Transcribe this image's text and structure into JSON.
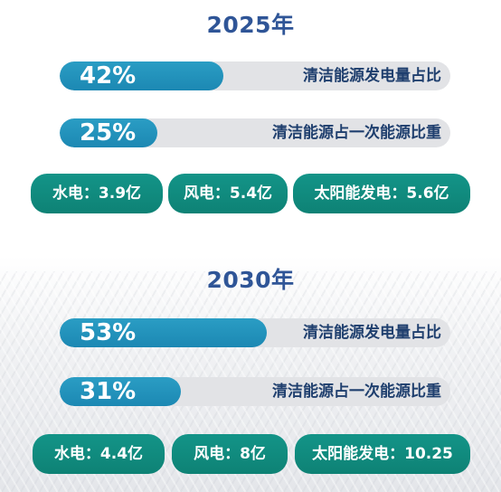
{
  "sections": [
    {
      "year": "2025年",
      "bars": [
        {
          "percent_text": "42%",
          "value": 42,
          "label": "清洁能源发电量占比"
        },
        {
          "percent_text": "25%",
          "value": 25,
          "label": "清洁能源占一次能源比重"
        }
      ],
      "pills": [
        {
          "text": "水电：3.9亿"
        },
        {
          "text": "风电：5.4亿"
        },
        {
          "text": "太阳能发电：5.6亿"
        }
      ]
    },
    {
      "year": "2030年",
      "bars": [
        {
          "percent_text": "53%",
          "value": 53,
          "label": "清洁能源发电量占比"
        },
        {
          "percent_text": "31%",
          "value": 31,
          "label": "清洁能源占一次能源比重"
        }
      ],
      "pills": [
        {
          "text": "水电：4.4亿"
        },
        {
          "text": "风电：8亿"
        },
        {
          "text": "太阳能发电：10.25"
        }
      ]
    }
  ],
  "colors": {
    "year_text": "#2f5597",
    "bar_fill": "#1c88b3",
    "bar_track": "#e2e3e6",
    "bar_label": "#1f3f6e",
    "pill": "#0e8275"
  }
}
